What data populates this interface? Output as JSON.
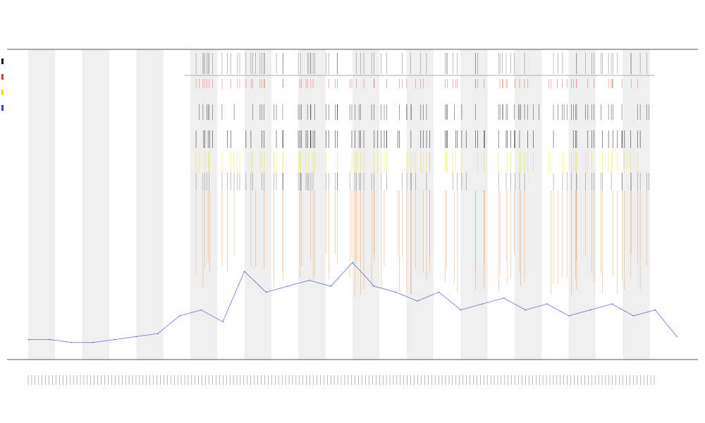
{
  "title": {
    "main": "",
    "sub1": "",
    "sub2": ""
  },
  "legend": [
    {
      "label": "",
      "color": "#111111"
    },
    {
      "label": "",
      "color": "#cc4422"
    },
    {
      "label": "",
      "color": "#e8e020"
    },
    {
      "label": "",
      "color": "#3344cc"
    }
  ],
  "chart_data": {
    "type": "line",
    "title": "",
    "xlabel": "",
    "ylabel": "",
    "x_range": [
      0,
      600
    ],
    "y_range": [
      0,
      100
    ],
    "band_count": 12,
    "series": [
      {
        "color": "#3344cc",
        "x": [
          0,
          20,
          40,
          60,
          80,
          100,
          120,
          140,
          160,
          180,
          200,
          220,
          240,
          260,
          280,
          300,
          320,
          340,
          360,
          380,
          400,
          420,
          440,
          460,
          480,
          500,
          520,
          540,
          560,
          580,
          600
        ],
        "values": [
          2,
          2,
          1,
          1,
          2,
          3,
          4,
          10,
          12,
          8,
          25,
          18,
          20,
          22,
          20,
          28,
          20,
          18,
          15,
          18,
          12,
          14,
          16,
          12,
          14,
          10,
          12,
          14,
          10,
          12,
          3
        ]
      }
    ]
  }
}
